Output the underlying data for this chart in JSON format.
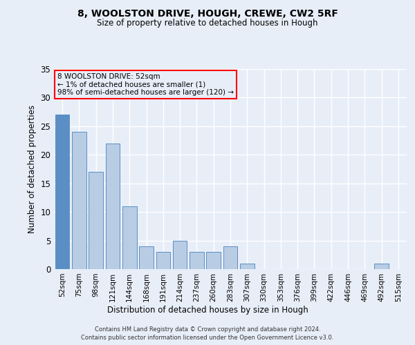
{
  "title1": "8, WOOLSTON DRIVE, HOUGH, CREWE, CW2 5RF",
  "title2": "Size of property relative to detached houses in Hough",
  "xlabel": "Distribution of detached houses by size in Hough",
  "ylabel": "Number of detached properties",
  "categories": [
    "52sqm",
    "75sqm",
    "98sqm",
    "121sqm",
    "144sqm",
    "168sqm",
    "191sqm",
    "214sqm",
    "237sqm",
    "260sqm",
    "283sqm",
    "307sqm",
    "330sqm",
    "353sqm",
    "376sqm",
    "399sqm",
    "422sqm",
    "446sqm",
    "469sqm",
    "492sqm",
    "515sqm"
  ],
  "values": [
    27,
    24,
    17,
    22,
    11,
    4,
    3,
    5,
    3,
    3,
    4,
    1,
    0,
    0,
    0,
    0,
    0,
    0,
    0,
    1,
    0
  ],
  "highlight_index": 0,
  "bar_color": "#b8cce4",
  "highlight_color": "#5b8ec4",
  "bar_edge_color": "#5b8ec4",
  "background_color": "#e8eef8",
  "grid_color": "#ffffff",
  "ylim": [
    0,
    35
  ],
  "yticks": [
    0,
    5,
    10,
    15,
    20,
    25,
    30,
    35
  ],
  "annotation_text": "8 WOOLSTON DRIVE: 52sqm\n← 1% of detached houses are smaller (1)\n98% of semi-detached houses are larger (120) →",
  "footer1": "Contains HM Land Registry data © Crown copyright and database right 2024.",
  "footer2": "Contains public sector information licensed under the Open Government Licence v3.0."
}
